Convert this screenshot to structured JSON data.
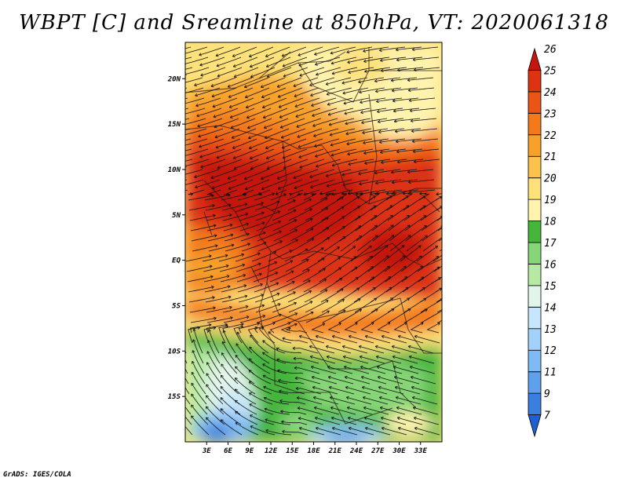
{
  "title": "WBPT [C] and Sreamline at 850hPa, VT: 2020061318",
  "credit": "GrADS: IGES/COLA",
  "map": {
    "lon_range": [
      0,
      36
    ],
    "lat_range": [
      -20,
      24
    ],
    "lat_ticks": [
      {
        "value": 20,
        "label": "20N"
      },
      {
        "value": 15,
        "label": "15N"
      },
      {
        "value": 10,
        "label": "10N"
      },
      {
        "value": 5,
        "label": "5N"
      },
      {
        "value": 0,
        "label": "EQ"
      },
      {
        "value": -5,
        "label": "5S"
      },
      {
        "value": -10,
        "label": "10S"
      },
      {
        "value": -15,
        "label": "15S"
      }
    ],
    "lon_ticks": [
      {
        "value": 3,
        "label": "3E"
      },
      {
        "value": 6,
        "label": "6E"
      },
      {
        "value": 9,
        "label": "9E"
      },
      {
        "value": 12,
        "label": "12E"
      },
      {
        "value": 15,
        "label": "15E"
      },
      {
        "value": 18,
        "label": "18E"
      },
      {
        "value": 21,
        "label": "21E"
      },
      {
        "value": 24,
        "label": "24E"
      },
      {
        "value": 27,
        "label": "27E"
      },
      {
        "value": 30,
        "label": "30E"
      },
      {
        "value": 33,
        "label": "33E"
      }
    ]
  },
  "colorbar": {
    "levels": [
      {
        "label": "7",
        "color": "#1f5fcf"
      },
      {
        "label": "9",
        "color": "#3a7fe0"
      },
      {
        "label": "11",
        "color": "#5ea0ee"
      },
      {
        "label": "12",
        "color": "#7fbaf5"
      },
      {
        "label": "13",
        "color": "#a3d1fa"
      },
      {
        "label": "14",
        "color": "#c6e6fc"
      },
      {
        "label": "15",
        "color": "#e2f5ea"
      },
      {
        "label": "16",
        "color": "#b6eaa3"
      },
      {
        "label": "17",
        "color": "#86d677"
      },
      {
        "label": "18",
        "color": "#45b53c"
      },
      {
        "label": "19",
        "color": "#fff3ad"
      },
      {
        "label": "20",
        "color": "#fde17a"
      },
      {
        "label": "21",
        "color": "#fbc24c"
      },
      {
        "label": "22",
        "color": "#f7a12a"
      },
      {
        "label": "23",
        "color": "#f37a1c"
      },
      {
        "label": "24",
        "color": "#ea5414"
      },
      {
        "label": "25",
        "color": "#dc3312"
      },
      {
        "label": "26",
        "color": "#c4150f"
      }
    ]
  }
}
